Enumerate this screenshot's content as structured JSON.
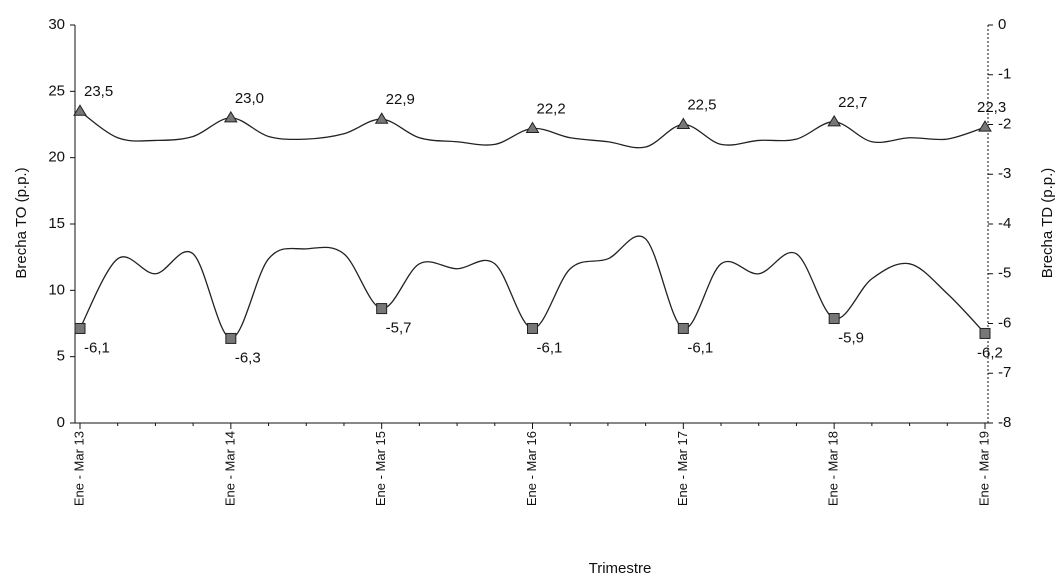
{
  "chart_data": {
    "type": "line",
    "xlabel": "Trimestre",
    "ylabel": "Brecha TO (p.p.)",
    "y2label": "Brecha TD (p.p.)",
    "categories": [
      "Ene - Mar 13",
      null,
      null,
      null,
      "Ene - Mar 14",
      null,
      null,
      null,
      "Ene - Mar 15",
      null,
      null,
      null,
      "Ene - Mar 16",
      null,
      null,
      null,
      "Ene - Mar 17",
      null,
      null,
      null,
      "Ene - Mar 18",
      null,
      null,
      null,
      "Ene - Mar 19"
    ],
    "series": [
      {
        "color": "#222222",
        "marker": "triangle",
        "values": [
          23.5,
          21.5,
          21.3,
          21.6,
          23.0,
          21.6,
          21.4,
          21.8,
          22.9,
          21.5,
          21.2,
          21.0,
          22.2,
          21.5,
          21.2,
          20.8,
          22.5,
          21.0,
          21.3,
          21.4,
          22.7,
          21.2,
          21.5,
          21.4,
          22.3
        ],
        "value_labels": [
          "23,5",
          null,
          null,
          null,
          "23,0",
          null,
          null,
          null,
          "22,9",
          null,
          null,
          null,
          "22,2",
          null,
          null,
          null,
          "22,5",
          null,
          null,
          null,
          "22,7",
          null,
          null,
          null,
          "22,3"
        ]
      },
      {
        "color": "#222222",
        "marker": "square",
        "axis": "y2",
        "values": [
          -6.1,
          -4.7,
          -5.0,
          -4.6,
          -6.3,
          -4.7,
          -4.5,
          -4.6,
          -5.7,
          -4.8,
          -4.9,
          -4.8,
          -6.1,
          -4.9,
          -4.7,
          -4.3,
          -6.1,
          -4.8,
          -5.0,
          -4.6,
          -5.9,
          -5.1,
          -4.8,
          -5.4,
          -6.2
        ],
        "value_labels": [
          "-6,1",
          null,
          null,
          null,
          "-6,3",
          null,
          null,
          null,
          "-5,7",
          null,
          null,
          null,
          "-6,1",
          null,
          null,
          null,
          "-6,1",
          null,
          null,
          null,
          "-5,9",
          null,
          null,
          null,
          "-6,2"
        ]
      }
    ],
    "ylim": [
      0,
      30
    ],
    "yticks": [
      0,
      5,
      10,
      15,
      20,
      25,
      30
    ],
    "y2lim": [
      -8,
      0
    ],
    "y2ticks": [
      -8,
      -7,
      -6,
      -5,
      -4,
      -3,
      -2,
      -1,
      0
    ]
  }
}
